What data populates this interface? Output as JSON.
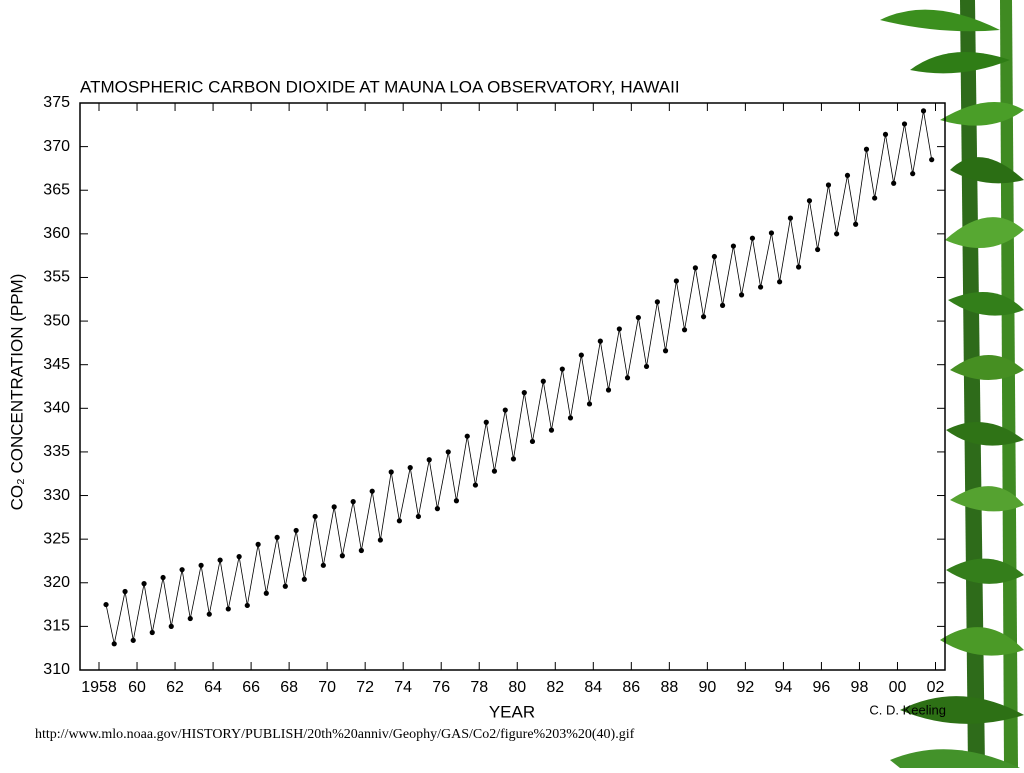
{
  "chart_data": {
    "type": "line",
    "title": "ATMOSPHERIC CARBON DIOXIDE AT MAUNA LOA OBSERVATORY, HAWAII",
    "ylabel": "CO₂ CONCENTRATION (PPM)",
    "xlabel": "YEAR",
    "credit": "C. D. Keeling",
    "source_url": "http://www.mlo.noaa.gov/HISTORY/PUBLISH/20th%20anniv/Geophy/GAS/Co2/figure%203%20(40).gif",
    "color": "#000000",
    "markers": true,
    "xlim": [
      1957,
      2002.5
    ],
    "ylim": [
      310,
      375
    ],
    "yticks": [
      310,
      315,
      320,
      325,
      330,
      335,
      340,
      345,
      350,
      355,
      360,
      365,
      370,
      375
    ],
    "xticks": [
      1958,
      {
        "value": 1960,
        "label": "60"
      },
      {
        "value": 1962,
        "label": "62"
      },
      {
        "value": 1964,
        "label": "64"
      },
      {
        "value": 1966,
        "label": "66"
      },
      {
        "value": 1968,
        "label": "68"
      },
      {
        "value": 1970,
        "label": "70"
      },
      {
        "value": 1972,
        "label": "72"
      },
      {
        "value": 1974,
        "label": "74"
      },
      {
        "value": 1976,
        "label": "76"
      },
      {
        "value": 1978,
        "label": "78"
      },
      {
        "value": 1980,
        "label": "80"
      },
      {
        "value": 1982,
        "label": "82"
      },
      {
        "value": 1984,
        "label": "84"
      },
      {
        "value": 1986,
        "label": "86"
      },
      {
        "value": 1988,
        "label": "88"
      },
      {
        "value": 1990,
        "label": "90"
      },
      {
        "value": 1992,
        "label": "92"
      },
      {
        "value": 1994,
        "label": "94"
      },
      {
        "value": 1996,
        "label": "96"
      },
      {
        "value": 1998,
        "label": "98"
      },
      {
        "value": 2000,
        "label": "00"
      },
      {
        "value": 2002,
        "label": "02"
      }
    ],
    "x": [
      1958.37,
      1958.8,
      1959.37,
      1959.8,
      1960.37,
      1960.8,
      1961.37,
      1961.8,
      1962.37,
      1962.8,
      1963.37,
      1963.8,
      1964.37,
      1964.8,
      1965.37,
      1965.8,
      1966.37,
      1966.8,
      1967.37,
      1967.8,
      1968.37,
      1968.8,
      1969.37,
      1969.8,
      1970.37,
      1970.8,
      1971.37,
      1971.8,
      1972.37,
      1972.8,
      1973.37,
      1973.8,
      1974.37,
      1974.8,
      1975.37,
      1975.8,
      1976.37,
      1976.8,
      1977.37,
      1977.8,
      1978.37,
      1978.8,
      1979.37,
      1979.8,
      1980.37,
      1980.8,
      1981.37,
      1981.8,
      1982.37,
      1982.8,
      1983.37,
      1983.8,
      1984.37,
      1984.8,
      1985.37,
      1985.8,
      1986.37,
      1986.8,
      1987.37,
      1987.8,
      1988.37,
      1988.8,
      1989.37,
      1989.8,
      1990.37,
      1990.8,
      1991.37,
      1991.8,
      1992.37,
      1992.8,
      1993.37,
      1993.8,
      1994.37,
      1994.8,
      1995.37,
      1995.8,
      1996.37,
      1996.8,
      1997.37,
      1997.8,
      1998.37,
      1998.8,
      1999.37,
      1999.8,
      2000.37,
      2000.8,
      2001.37,
      2001.8
    ],
    "values": [
      317.5,
      313.0,
      319.0,
      313.4,
      319.9,
      314.3,
      320.6,
      315.0,
      321.5,
      315.9,
      322.0,
      316.4,
      322.6,
      317.0,
      323.0,
      317.4,
      324.4,
      318.8,
      325.2,
      319.6,
      326.0,
      320.4,
      327.6,
      322.0,
      328.7,
      323.1,
      329.3,
      323.7,
      330.5,
      324.9,
      332.7,
      327.1,
      333.2,
      327.6,
      334.1,
      328.5,
      335.0,
      329.4,
      336.8,
      331.2,
      338.4,
      332.8,
      339.8,
      334.2,
      341.8,
      336.2,
      343.1,
      337.5,
      344.5,
      338.9,
      346.1,
      340.5,
      347.7,
      342.1,
      349.1,
      343.5,
      350.4,
      344.8,
      352.2,
      346.6,
      354.6,
      349.0,
      356.1,
      350.5,
      357.4,
      351.8,
      358.6,
      353.0,
      359.5,
      353.9,
      360.1,
      354.5,
      361.8,
      356.2,
      363.8,
      358.2,
      365.6,
      360.0,
      366.7,
      361.1,
      369.7,
      364.1,
      371.4,
      365.8,
      372.6,
      366.9,
      374.1,
      368.5
    ]
  }
}
